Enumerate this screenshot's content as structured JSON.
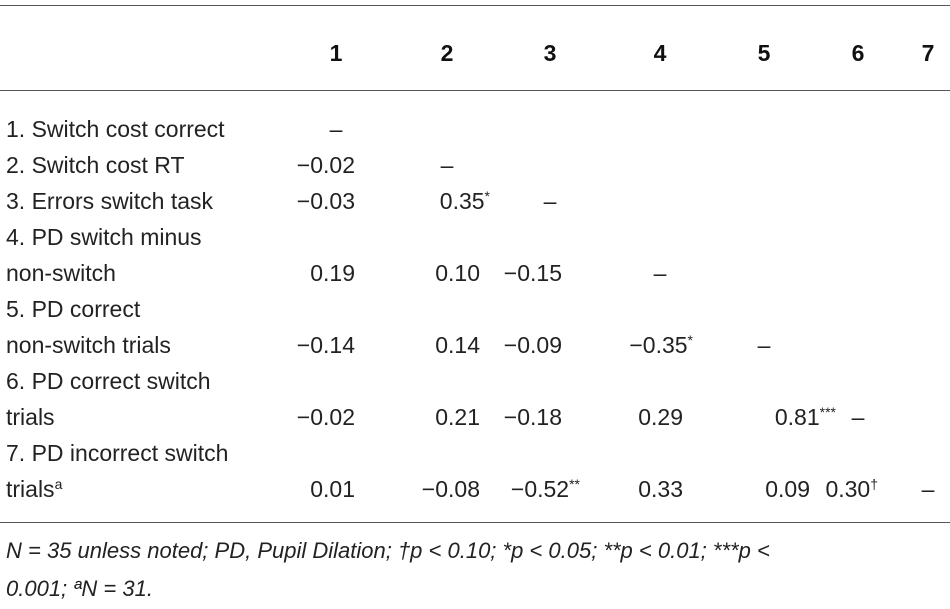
{
  "columns": [
    "1",
    "2",
    "3",
    "4",
    "5",
    "6",
    "7"
  ],
  "rows": [
    {
      "label_lines": [
        "1. Switch cost correct"
      ],
      "label_sup": "",
      "cells": [
        {
          "v": "–",
          "s": ""
        },
        null,
        null,
        null,
        null,
        null,
        null
      ]
    },
    {
      "label_lines": [
        "2. Switch cost RT"
      ],
      "label_sup": "",
      "cells": [
        {
          "v": "−0.02",
          "s": ""
        },
        {
          "v": "–",
          "s": ""
        },
        null,
        null,
        null,
        null,
        null
      ]
    },
    {
      "label_lines": [
        "3. Errors switch task"
      ],
      "label_sup": "",
      "cells": [
        {
          "v": "−0.03",
          "s": ""
        },
        {
          "v": "0.35",
          "s": "*"
        },
        {
          "v": "–",
          "s": ""
        },
        null,
        null,
        null,
        null
      ]
    },
    {
      "label_lines": [
        "4. PD switch minus",
        "non-switch"
      ],
      "label_sup": "",
      "cells": [
        {
          "v": "0.19",
          "s": ""
        },
        {
          "v": "0.10",
          "s": ""
        },
        {
          "v": "−0.15",
          "s": ""
        },
        {
          "v": "–",
          "s": ""
        },
        null,
        null,
        null
      ]
    },
    {
      "label_lines": [
        "5. PD correct",
        "non-switch trials"
      ],
      "label_sup": "",
      "cells": [
        {
          "v": "−0.14",
          "s": ""
        },
        {
          "v": "0.14",
          "s": ""
        },
        {
          "v": "−0.09",
          "s": ""
        },
        {
          "v": "−0.35",
          "s": "*"
        },
        {
          "v": "–",
          "s": ""
        },
        null,
        null
      ]
    },
    {
      "label_lines": [
        "6. PD correct switch",
        "trials"
      ],
      "label_sup": "",
      "cells": [
        {
          "v": "−0.02",
          "s": ""
        },
        {
          "v": "0.21",
          "s": ""
        },
        {
          "v": "−0.18",
          "s": ""
        },
        {
          "v": "0.29",
          "s": ""
        },
        {
          "v": "0.81",
          "s": "***"
        },
        {
          "v": "–",
          "s": ""
        },
        null
      ]
    },
    {
      "label_lines": [
        "7. PD incorrect switch",
        "trials"
      ],
      "label_sup": "a",
      "cells": [
        {
          "v": "0.01",
          "s": ""
        },
        {
          "v": "−0.08",
          "s": ""
        },
        {
          "v": "−0.52",
          "s": "**"
        },
        {
          "v": "0.33",
          "s": ""
        },
        {
          "v": "0.09",
          "s": ""
        },
        {
          "v": "0.30",
          "s": "†"
        },
        {
          "v": "–",
          "s": ""
        }
      ]
    }
  ],
  "footnote": {
    "line1": "N = 35 unless noted; PD, Pupil Dilation; †p < 0.10; *p < 0.05; **p < 0.01; ***p <",
    "line2": "0.001; ªN = 31."
  }
}
